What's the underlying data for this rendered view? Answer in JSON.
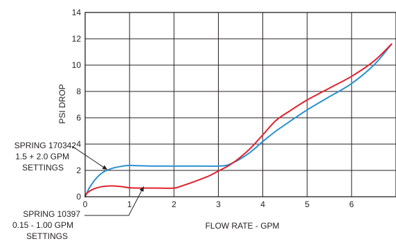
{
  "chart_data": {
    "type": "line",
    "xlabel": "FLOW RATE - GPM",
    "ylabel": "PSI DROP",
    "xlim": [
      0,
      7
    ],
    "ylim": [
      0,
      14
    ],
    "x_ticks": [
      0,
      1,
      2,
      3,
      4,
      5,
      6
    ],
    "y_ticks": [
      0,
      2,
      4,
      6,
      8,
      10,
      12,
      14
    ],
    "grid": true,
    "legend": "none",
    "series": [
      {
        "color": "#2a8fd0",
        "points": [
          [
            0,
            0
          ],
          [
            0.1,
            0.7
          ],
          [
            0.25,
            1.4
          ],
          [
            0.4,
            1.85
          ],
          [
            0.6,
            2.15
          ],
          [
            0.8,
            2.3
          ],
          [
            1.0,
            2.38
          ],
          [
            1.2,
            2.35
          ],
          [
            1.5,
            2.33
          ],
          [
            2.0,
            2.33
          ],
          [
            2.5,
            2.33
          ],
          [
            3.0,
            2.33
          ],
          [
            3.2,
            2.4
          ],
          [
            3.4,
            2.7
          ],
          [
            3.6,
            3.1
          ],
          [
            3.8,
            3.6
          ],
          [
            4.0,
            4.2
          ],
          [
            4.3,
            5.0
          ],
          [
            4.6,
            5.7
          ],
          [
            5.0,
            6.6
          ],
          [
            5.5,
            7.6
          ],
          [
            6.0,
            8.6
          ],
          [
            6.5,
            10.0
          ],
          [
            6.9,
            11.6
          ]
        ]
      },
      {
        "color": "#e0202c",
        "points": [
          [
            0,
            0.05
          ],
          [
            0.05,
            0.3
          ],
          [
            0.2,
            0.6
          ],
          [
            0.4,
            0.78
          ],
          [
            0.6,
            0.82
          ],
          [
            0.8,
            0.78
          ],
          [
            1.0,
            0.68
          ],
          [
            1.3,
            0.66
          ],
          [
            1.6,
            0.66
          ],
          [
            2.0,
            0.66
          ],
          [
            2.2,
            0.85
          ],
          [
            2.5,
            1.2
          ],
          [
            2.8,
            1.6
          ],
          [
            3.0,
            1.95
          ],
          [
            3.2,
            2.3
          ],
          [
            3.4,
            2.75
          ],
          [
            3.6,
            3.3
          ],
          [
            3.8,
            3.95
          ],
          [
            4.0,
            4.7
          ],
          [
            4.3,
            5.8
          ],
          [
            4.6,
            6.5
          ],
          [
            5.0,
            7.35
          ],
          [
            5.5,
            8.25
          ],
          [
            6.0,
            9.15
          ],
          [
            6.5,
            10.3
          ],
          [
            6.9,
            11.6
          ]
        ]
      }
    ],
    "annotations": [
      {
        "lines": [
          "SPRING 170342",
          "1.5 + 2.0 GPM",
          "SETTINGS"
        ],
        "target": [
          0.5,
          2.05
        ]
      },
      {
        "lines": [
          "SPRING 10397",
          "0.15 - 1.00 GPM",
          "SETTINGS"
        ],
        "target": [
          1.32,
          0.78
        ]
      }
    ]
  }
}
